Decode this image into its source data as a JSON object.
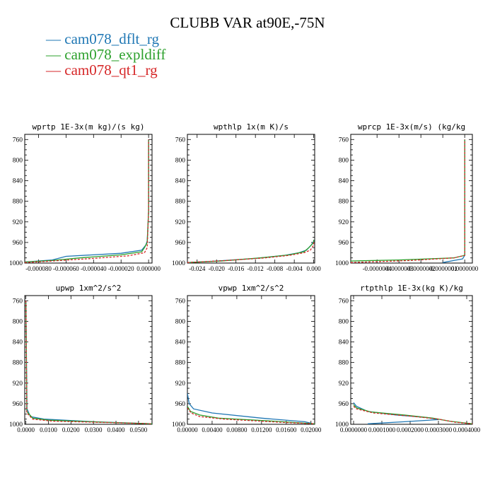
{
  "title": "CLUBB VAR at90E,-75N",
  "legend": [
    {
      "label": "cam078_dflt_rg",
      "color": "#1f77b4"
    },
    {
      "label": "cam078_expldiff",
      "color": "#2ca02c"
    },
    {
      "label": "cam078_qt1_rg",
      "color": "#d62728"
    }
  ],
  "chart_data": [
    {
      "type": "line",
      "title": "wprtp  1E-3x(m kg)/(s kg)",
      "ylim": [
        1000,
        750
      ],
      "yticks": [
        760,
        800,
        840,
        880,
        920,
        960,
        1000
      ],
      "xlim": [
        -9e-05,
        2.5e-06
      ],
      "xtick_values": [
        -8e-05,
        -6e-05,
        -4e-05,
        -2e-05,
        0
      ],
      "xtick_labels": [
        "-0.000080",
        "-0.000060",
        "-0.000040",
        "-0.000020",
        "0.000000"
      ],
      "series": [
        {
          "x": [
            -9e-05,
            -7e-05,
            -6e-05,
            -2e-05,
            -5e-06,
            -2e-06,
            -1e-06,
            0,
            0
          ],
          "y": [
            998,
            994,
            987,
            981,
            975,
            965,
            957,
            900,
            760
          ]
        },
        {
          "x": [
            -9e-05,
            -7e-05,
            -5e-05,
            -2e-05,
            -5e-06,
            -3e-06,
            -1e-06,
            0,
            0
          ],
          "y": [
            998,
            995,
            990,
            984,
            978,
            970,
            960,
            900,
            760
          ]
        },
        {
          "x": [
            -9e-05,
            -7e-05,
            -4e-05,
            -1.5e-05,
            -3e-06,
            -1e-06,
            0,
            0
          ],
          "y": [
            999,
            996,
            991,
            986,
            980,
            970,
            900,
            760
          ]
        }
      ]
    },
    {
      "type": "line",
      "title": "wpthlp  1x(m K)/s",
      "ylim": [
        1000,
        750
      ],
      "yticks": [
        760,
        800,
        840,
        880,
        920,
        960,
        1000
      ],
      "xlim": [
        -0.026,
        0.0002
      ],
      "xtick_values": [
        -0.024,
        -0.02,
        -0.016,
        -0.012,
        -0.008,
        -0.004,
        0
      ],
      "xtick_labels": [
        "-0.024",
        "-0.020",
        "-0.016",
        "-0.012",
        "-0.008",
        "-0.004",
        "0.000"
      ],
      "series": [
        {
          "x": [
            -0.026,
            -0.02,
            -0.012,
            -0.006,
            -0.003,
            -0.0015,
            -0.0005,
            0,
            0
          ],
          "y": [
            999,
            996,
            991,
            985,
            980,
            975,
            965,
            958,
            955
          ]
        },
        {
          "x": [
            -0.026,
            -0.019,
            -0.011,
            -0.005,
            -0.002,
            -0.001,
            0,
            0
          ],
          "y": [
            999,
            996,
            990,
            984,
            978,
            970,
            960,
            955
          ]
        },
        {
          "x": [
            -0.026,
            -0.018,
            -0.01,
            -0.005,
            -0.002,
            -0.0007,
            0,
            0
          ],
          "y": [
            999,
            995,
            990,
            985,
            980,
            975,
            965,
            958
          ]
        }
      ]
    },
    {
      "type": "line",
      "title": "wprcp  1E-3x(m/s) (kg/kg",
      "ylim": [
        1000,
        750
      ],
      "yticks": [
        760,
        800,
        840,
        880,
        920,
        960,
        1000
      ],
      "xlim": [
        -5.2e-07,
        3.5e-08
      ],
      "xtick_values": [
        -4e-07,
        -3e-07,
        -2e-07,
        -1e-07,
        0
      ],
      "xtick_labels": [
        "-0.0000004",
        "-0.0000003",
        "-0.0000002",
        "-0.0000001",
        "0.0000000"
      ],
      "series": [
        {
          "x": [
            -1e-07,
            -5e-08,
            -1e-08,
            0,
            0
          ],
          "y": [
            999,
            995,
            992,
            985,
            760
          ]
        },
        {
          "x": [
            -5.2e-07,
            -3e-07,
            -5e-08,
            0,
            0
          ],
          "y": [
            996,
            994,
            990,
            985,
            760
          ]
        },
        {
          "x": [
            -5.2e-07,
            -2.5e-07,
            -5e-08,
            0,
            0
          ],
          "y": [
            999,
            995,
            990,
            985,
            760
          ]
        }
      ]
    },
    {
      "type": "line",
      "title": "upwp  1xm^2/s^2",
      "ylim": [
        1000,
        750
      ],
      "yticks": [
        760,
        800,
        840,
        880,
        920,
        960,
        1000
      ],
      "xlim": [
        -0.0005,
        0.056
      ],
      "xtick_values": [
        0,
        0.01,
        0.02,
        0.03,
        0.04,
        0.05
      ],
      "xtick_labels": [
        "0.0000",
        "0.0100",
        "0.0200",
        "0.0300",
        "0.0400",
        "0.0500"
      ],
      "series": [
        {
          "x": [
            0,
            0.0005,
            0.002,
            0.008,
            0.03,
            0.056
          ],
          "y": [
            760,
            970,
            985,
            990,
            995,
            999
          ]
        },
        {
          "x": [
            0,
            0.0004,
            0.003,
            0.01,
            0.035,
            0.056
          ],
          "y": [
            760,
            975,
            988,
            992,
            996,
            999
          ]
        },
        {
          "x": [
            0,
            0.0004,
            0.003,
            0.012,
            0.04,
            0.056
          ],
          "y": [
            760,
            978,
            990,
            994,
            997,
            999
          ]
        }
      ]
    },
    {
      "type": "line",
      "title": "vpwp  1xm^2/s^2",
      "ylim": [
        1000,
        750
      ],
      "yticks": [
        760,
        800,
        840,
        880,
        920,
        960,
        1000
      ],
      "xlim": [
        0,
        0.0206
      ],
      "xtick_values": [
        0,
        0.004,
        0.008,
        0.012,
        0.016,
        0.02
      ],
      "xtick_labels": [
        "0.00000",
        "0.00400",
        "0.00800",
        "0.01200",
        "0.01600",
        "0.02000"
      ],
      "series": [
        {
          "x": [
            0,
            0.0003,
            0.001,
            0.004,
            0.012,
            0.019,
            0.02,
            0.0198
          ],
          "y": [
            940,
            960,
            970,
            978,
            988,
            995,
            998,
            1000
          ]
        },
        {
          "x": [
            0,
            0.0005,
            0.002,
            0.005,
            0.014,
            0.0206
          ],
          "y": [
            965,
            975,
            982,
            988,
            994,
            999
          ]
        },
        {
          "x": [
            0,
            0.0006,
            0.002,
            0.006,
            0.015,
            0.0206
          ],
          "y": [
            968,
            978,
            985,
            990,
            996,
            999
          ]
        }
      ]
    },
    {
      "type": "line",
      "title": "rtpthlp  1E-3x(kg K)/kg",
      "ylim": [
        1000,
        750
      ],
      "yticks": [
        760,
        800,
        840,
        880,
        920,
        960,
        1000
      ],
      "xlim": [
        -1e-05,
        0.00042
      ],
      "xtick_values": [
        0,
        0.0001,
        0.0002,
        0.0003,
        0.0004
      ],
      "xtick_labels": [
        "0.0000000",
        "0.0001000",
        "0.0002000",
        "0.0003000",
        "0.0004000"
      ],
      "series": [
        {
          "x": [
            0,
            1e-05,
            5e-05,
            0.00015,
            0.00026,
            0.0003,
            0.00018,
            5e-05
          ],
          "y": [
            958,
            965,
            975,
            982,
            987,
            991,
            995,
            999
          ]
        },
        {
          "x": [
            0,
            1e-05,
            6e-05,
            0.00018,
            0.00028,
            0.00034,
            0.00042
          ],
          "y": [
            962,
            968,
            976,
            982,
            988,
            994,
            999
          ]
        },
        {
          "x": [
            0,
            1e-05,
            7e-05,
            0.0002,
            0.0003,
            0.00036,
            0.00042
          ],
          "y": [
            965,
            970,
            978,
            984,
            990,
            996,
            999
          ]
        }
      ]
    }
  ]
}
